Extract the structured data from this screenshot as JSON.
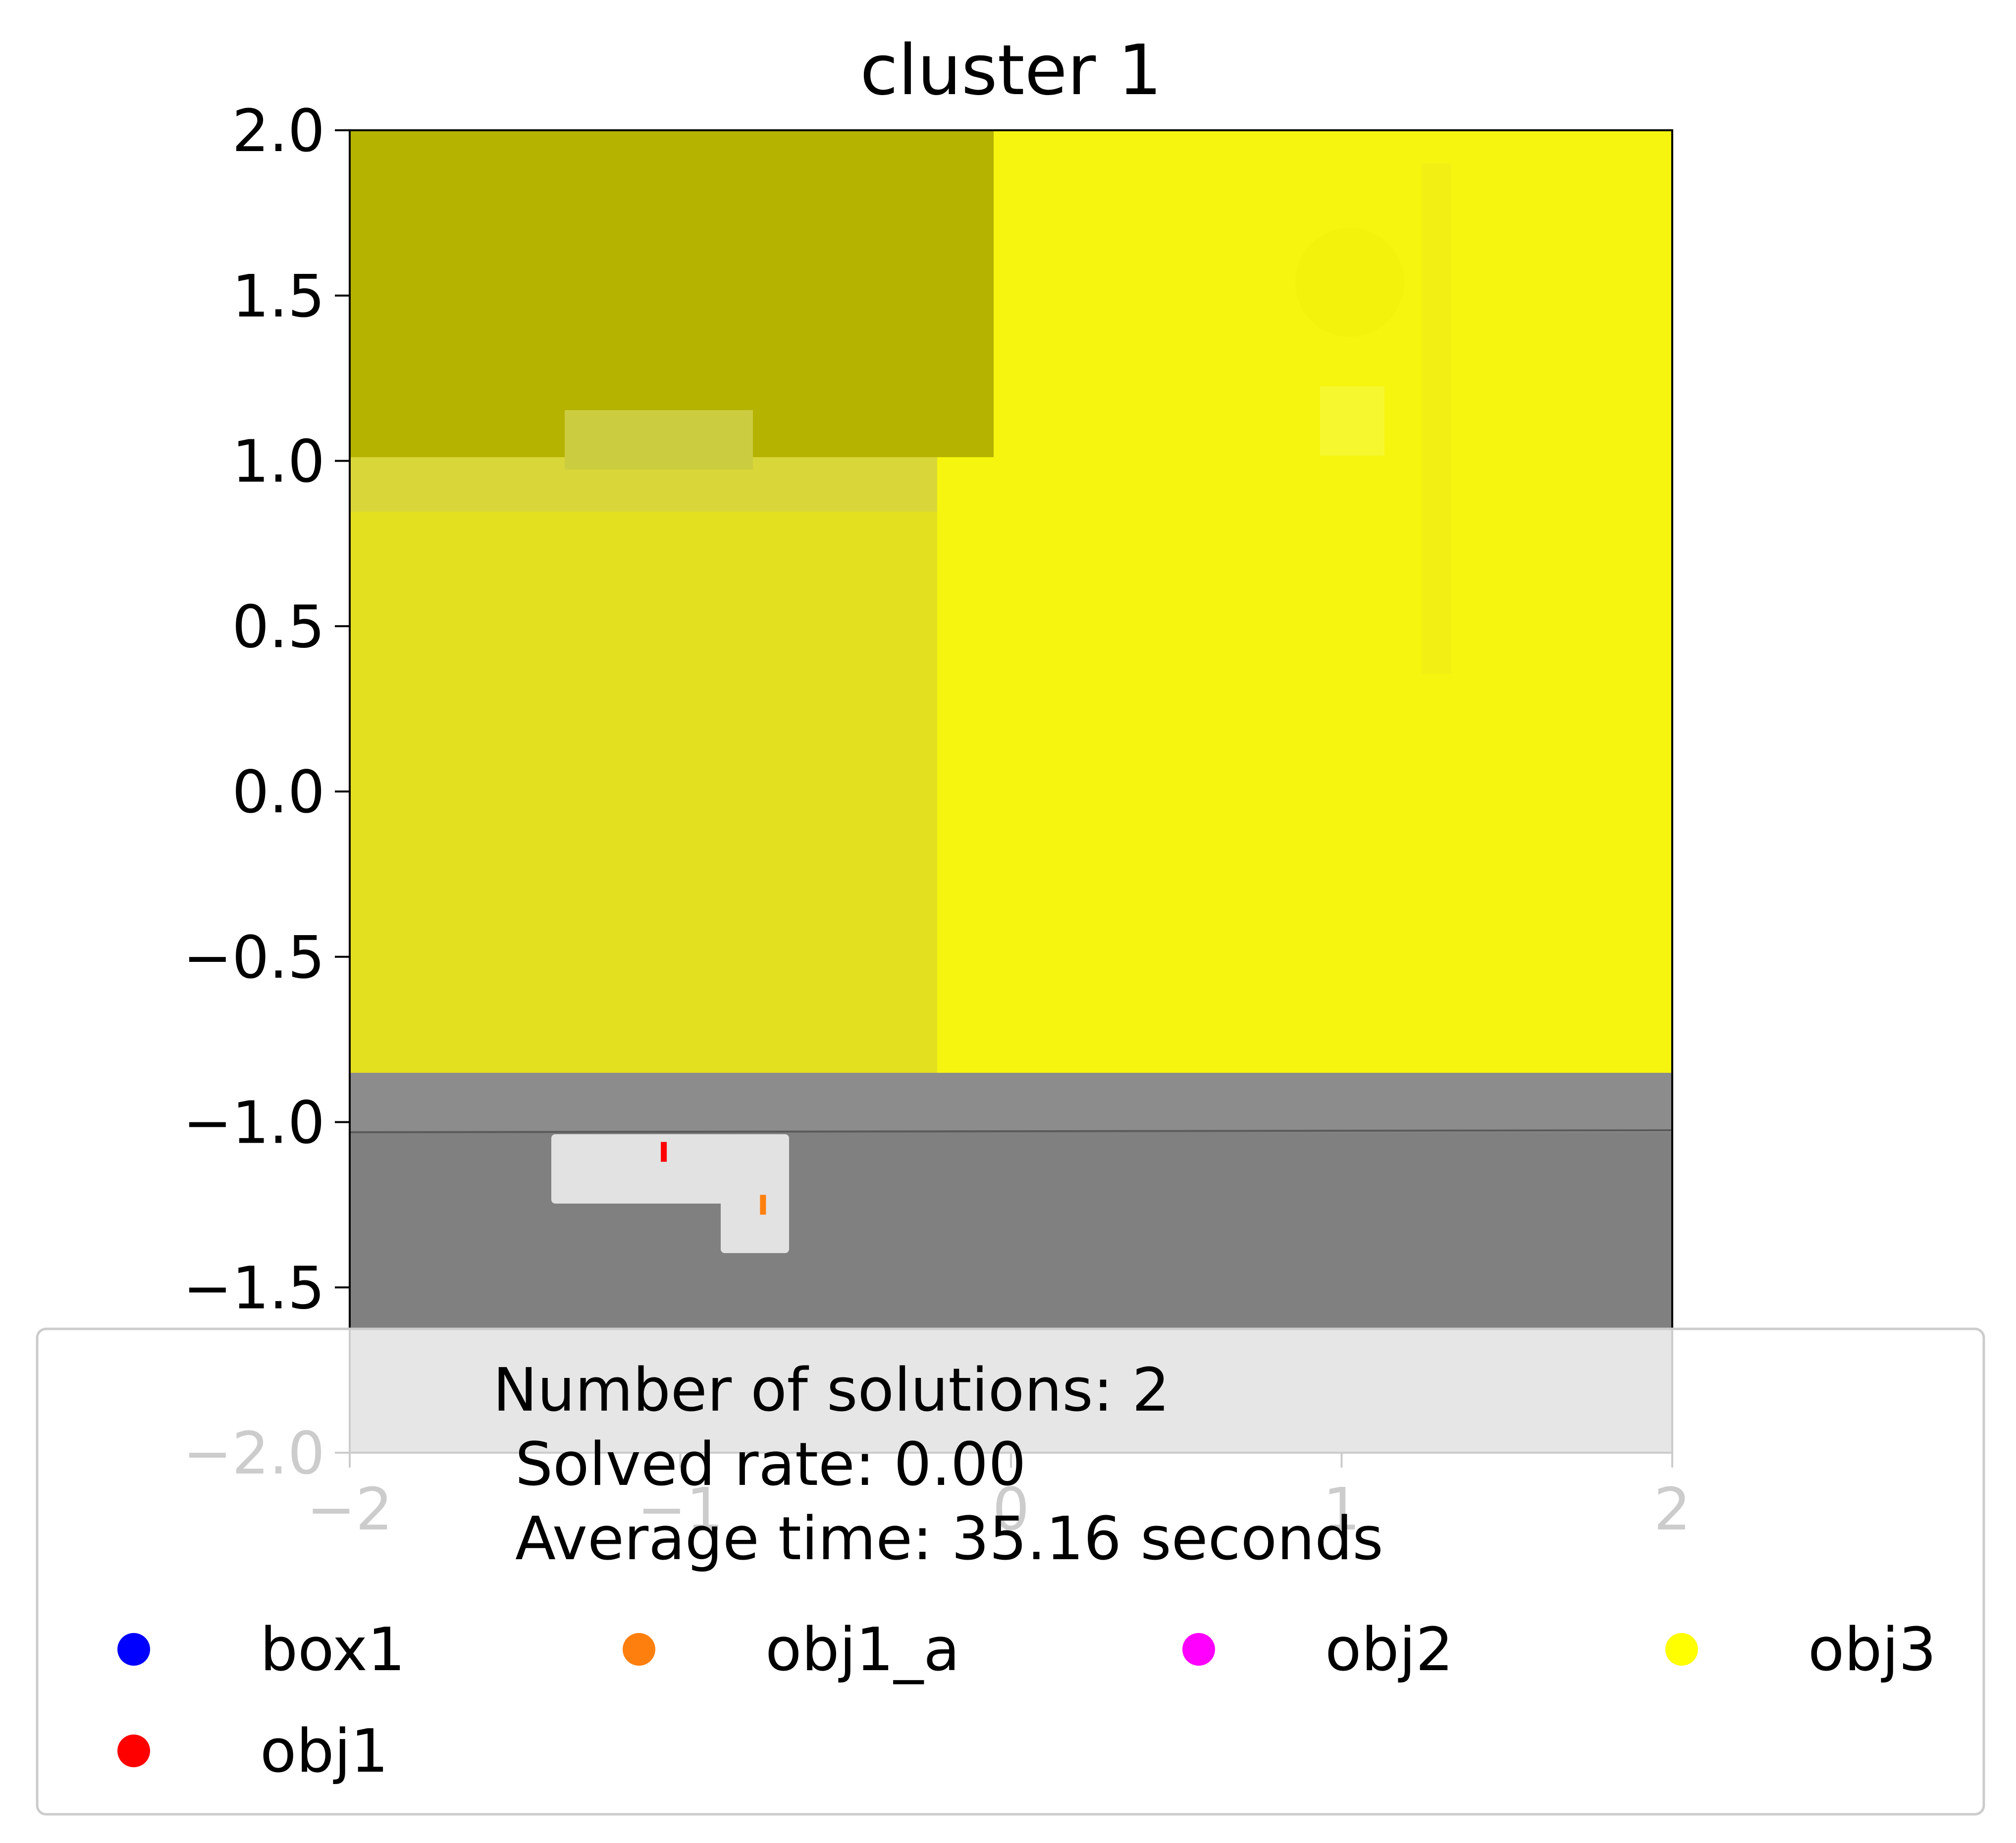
{
  "chart_data": {
    "type": "scatter",
    "title": "cluster 1",
    "xlabel": "",
    "ylabel": "",
    "xlim": [
      -2,
      2
    ],
    "ylim": [
      -2,
      2
    ],
    "x_ticks": [
      -2,
      -1,
      0,
      1,
      2
    ],
    "y_ticks": [
      2.0,
      1.5,
      1.0,
      0.5,
      0.0,
      -0.5,
      -1.0,
      -1.5,
      -2.0
    ],
    "x_tick_labels": [
      "−2",
      "−1",
      "0",
      "1",
      "2"
    ],
    "y_tick_labels": [
      "2.0",
      "1.5",
      "1.0",
      "0.5",
      "0.0",
      "−0.5",
      "−1.0",
      "−1.5",
      "−2.0"
    ],
    "grid": false,
    "background": "rendered scene image (yellow region over grey floor)",
    "series": [
      {
        "name": "box1",
        "color": "#0000ff",
        "points": []
      },
      {
        "name": "obj1_a",
        "color": "#ff7f0e",
        "points": [
          [
            -0.75,
            -1.25
          ]
        ]
      },
      {
        "name": "obj2",
        "color": "#ff00ff",
        "points": []
      },
      {
        "name": "obj3",
        "color": "#ffff00",
        "points": []
      },
      {
        "name": "obj1",
        "color": "#ff0000",
        "points": [
          [
            -1.05,
            -1.09
          ]
        ]
      }
    ],
    "legend": {
      "placement": "bottom",
      "lines": [
        "Number of solutions: 2",
        "Solved rate: 0.00",
        "Average time: 35.16 seconds"
      ]
    }
  }
}
